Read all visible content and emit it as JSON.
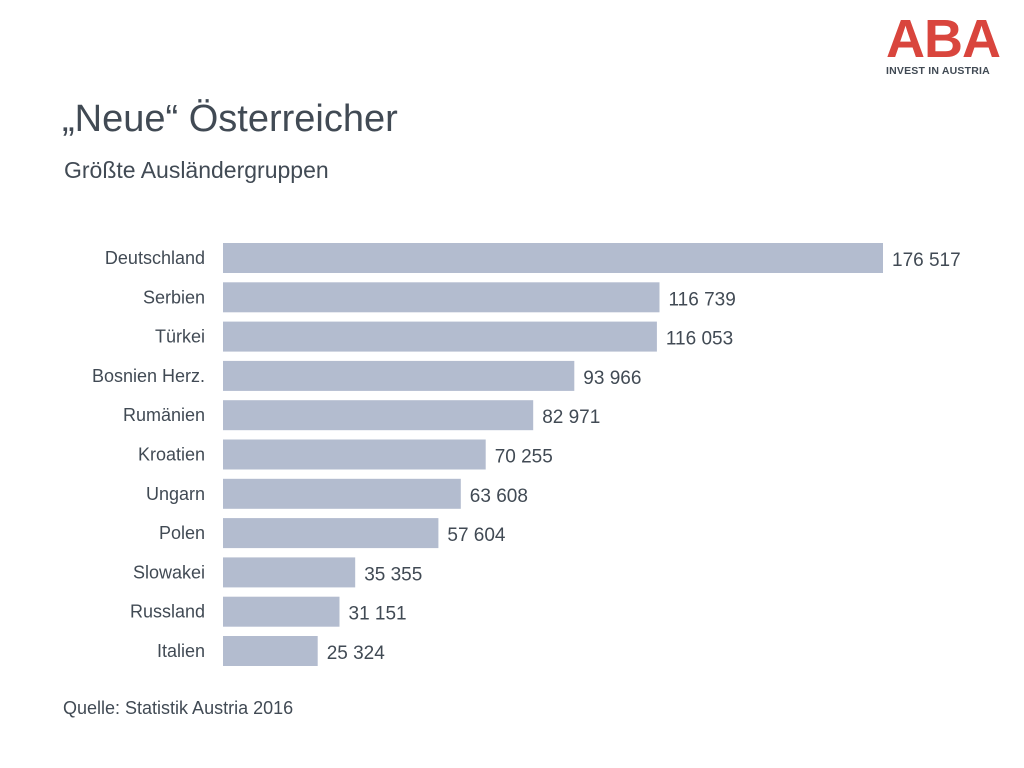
{
  "logo": {
    "mark": "ABA",
    "tagline": "INVEST IN AUSTRIA",
    "color": "#d9453d"
  },
  "header": {
    "title": "„Neue“ Österreicher",
    "subtitle": "Größte Ausländergruppen"
  },
  "footer": {
    "source": "Quelle: Statistik Austria 2016"
  },
  "colors": {
    "bar": "#b3bccf",
    "text": "#414a54"
  },
  "chart_data": {
    "type": "bar",
    "orientation": "horizontal",
    "categories": [
      "Deutschland",
      "Serbien",
      "Türkei",
      "Bosnien Herz.",
      "Rumänien",
      "Kroatien",
      "Ungarn",
      "Polen",
      "Slowakei",
      "Russland",
      "Italien"
    ],
    "values": [
      176517,
      116739,
      116053,
      93966,
      82971,
      70255,
      63608,
      57604,
      35355,
      31151,
      25324
    ],
    "value_labels": [
      "176 517",
      "116 739",
      "116 053",
      "93 966",
      "82 971",
      "70 255",
      "63 608",
      "57 604",
      "35 355",
      "31 151",
      "25 324"
    ],
    "xlim": [
      0,
      176517
    ],
    "grid": false,
    "legend": "none"
  }
}
